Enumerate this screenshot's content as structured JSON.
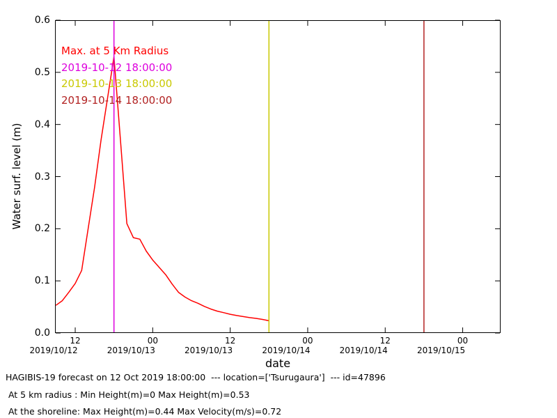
{
  "figure": {
    "background": "#ffffff",
    "axis_color": "#000000"
  },
  "chart_data": {
    "type": "line",
    "title": "",
    "xlabel": "date",
    "ylabel": "Water surf. level (m)",
    "x_unit": "hours since 2019/10/12 00:00",
    "xlim_hours": [
      8.87,
      77.87
    ],
    "ylim": [
      0,
      0.6
    ],
    "grid": false,
    "series": [
      {
        "name": "Max. at 5 Km Radius",
        "color": "#ff0000",
        "x_hours": [
          9,
          10,
          11,
          12,
          13,
          14,
          15,
          16,
          17,
          18,
          19,
          20,
          21,
          22,
          23,
          24,
          25,
          26,
          27,
          28,
          29,
          30,
          31,
          32,
          33,
          34,
          35,
          36,
          37,
          38,
          39,
          40,
          41,
          42
        ],
        "values": [
          0.053,
          0.062,
          0.078,
          0.095,
          0.12,
          0.2,
          0.28,
          0.37,
          0.45,
          0.53,
          0.37,
          0.21,
          0.183,
          0.18,
          0.157,
          0.14,
          0.126,
          0.112,
          0.094,
          0.078,
          0.069,
          0.062,
          0.057,
          0.051,
          0.046,
          0.042,
          0.039,
          0.036,
          0.0335,
          0.0315,
          0.0295,
          0.028,
          0.026,
          0.0235
        ]
      }
    ],
    "vlines": [
      {
        "label": "2019-10-12 18:00:00",
        "x_hours": 18,
        "color": "#dd00dd"
      },
      {
        "label": "2019-10-13 18:00:00",
        "x_hours": 42,
        "color": "#c9c900"
      },
      {
        "label": "2019-10-14 18:00:00",
        "x_hours": 66,
        "color": "#b22222"
      }
    ],
    "xticks": [
      {
        "x_hours": 12,
        "hour": "12",
        "date": "2019/10/12"
      },
      {
        "x_hours": 24,
        "hour": "00",
        "date": "2019/10/13"
      },
      {
        "x_hours": 36,
        "hour": "12",
        "date": "2019/10/13"
      },
      {
        "x_hours": 48,
        "hour": "00",
        "date": "2019/10/14"
      },
      {
        "x_hours": 60,
        "hour": "12",
        "date": "2019/10/14"
      },
      {
        "x_hours": 72,
        "hour": "00",
        "date": "2019/10/15"
      }
    ],
    "yticks": [
      {
        "v": 0.0,
        "label": "0.0"
      },
      {
        "v": 0.1,
        "label": "0.1"
      },
      {
        "v": 0.2,
        "label": "0.2"
      },
      {
        "v": 0.3,
        "label": "0.3"
      },
      {
        "v": 0.4,
        "label": "0.4"
      },
      {
        "v": 0.5,
        "label": "0.5"
      },
      {
        "v": 0.6,
        "label": "0.6"
      }
    ],
    "legend": {
      "position": "upper-left-inside",
      "entries": [
        {
          "text": "Max. at 5 Km Radius",
          "color": "#ff0000"
        },
        {
          "text": "2019-10-12 18:00:00",
          "color": "#dd00dd"
        },
        {
          "text": "2019-10-13 18:00:00",
          "color": "#c9c900"
        },
        {
          "text": "2019-10-14 18:00:00",
          "color": "#b22222"
        }
      ]
    }
  },
  "footer": {
    "line1": "HAGIBIS-19 forecast on 12 Oct 2019 18:00:00  --- location=['Tsurugaura']  --- id=47896",
    "line2": " At 5 km radius : Min Height(m)=0 Max Height(m)=0.53",
    "line3": " At the shoreline: Max Height(m)=0.44 Max Velocity(m/s)=0.72"
  }
}
